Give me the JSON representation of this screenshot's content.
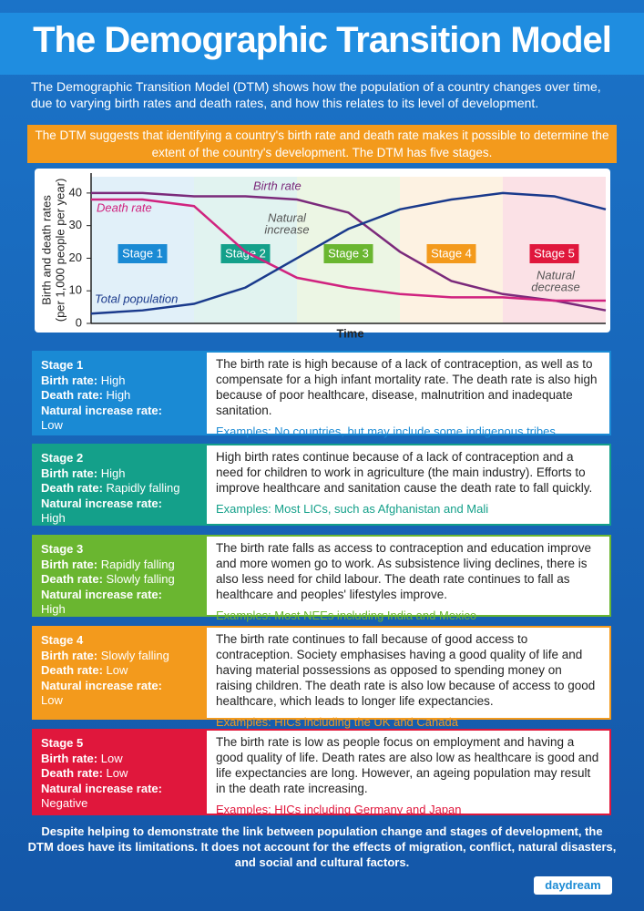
{
  "header": {
    "title": "The Demographic Transition Model",
    "intro": "The Demographic Transition Model (DTM) shows how the population of a country changes over time, due to varying birth rates and death rates, and how this relates to its level of development.",
    "banner": "The DTM suggests that identifying a country's birth rate and death rate makes it possible to determine the extent of the country's development. The DTM has five stages."
  },
  "chart_data": {
    "type": "line",
    "ylabel": [
      "Birth and death rates",
      "(per 1,000 people per year)"
    ],
    "xlabel": "Time",
    "categories": [
      null,
      null,
      null,
      null,
      null,
      null,
      null,
      null,
      null,
      null,
      null
    ],
    "series": [
      {
        "name": "Birth rate",
        "color": "#7b2a7b",
        "values": [
          40,
          40,
          39,
          39,
          38,
          34,
          22,
          13,
          9,
          7,
          4
        ]
      },
      {
        "name": "Death rate",
        "color": "#d0237f",
        "values": [
          38,
          38,
          36,
          22,
          14,
          11,
          9,
          8,
          8,
          7,
          7
        ]
      },
      {
        "name": "Total population",
        "color": "#1a3a8c",
        "values": [
          3,
          4,
          6,
          11,
          20,
          29,
          35,
          38,
          40,
          39,
          35
        ]
      }
    ],
    "annotations": [
      [
        "Natural",
        "increase"
      ],
      [
        "Natural",
        "decrease"
      ]
    ],
    "ylim": [
      0,
      45
    ],
    "yticks": [
      0,
      10,
      20,
      30,
      40
    ]
  },
  "stages": [
    {
      "title": "Stage 1",
      "color": "#1a8ad4",
      "facts": [
        {
          "label": "Birth rate:",
          "value": "High"
        },
        {
          "label": "Death rate:",
          "value": "High"
        },
        {
          "label": "Natural increase rate:",
          "value": "Low"
        }
      ],
      "text": "The birth rate is high because of a lack of contraception, as well as to compensate for a high infant mortality rate. The death rate is also high because of poor healthcare, disease, malnutrition and inadequate sanitation.",
      "example": "Examples: No countries, but may include some indigenous tribes"
    },
    {
      "title": "Stage 2",
      "color": "#14a08a",
      "facts": [
        {
          "label": "Birth rate:",
          "value": "High"
        },
        {
          "label": "Death rate:",
          "value": "Rapidly falling"
        },
        {
          "label": "Natural increase rate:",
          "value": "High"
        }
      ],
      "text": "High birth rates continue because of a lack of contraception and a need for children to work in agriculture (the main industry). Efforts to improve healthcare and sanitation cause the death rate to fall quickly.",
      "example": "Examples: Most LICs, such as Afghanistan and Mali"
    },
    {
      "title": "Stage 3",
      "color": "#6ab630",
      "facts": [
        {
          "label": "Birth rate:",
          "value": "Rapidly falling"
        },
        {
          "label": "Death rate:",
          "value": "Slowly falling"
        },
        {
          "label": "Natural increase rate:",
          "value": "High"
        }
      ],
      "text": "The birth rate falls as access to contraception and education improve and more women go to work. As subsistence living declines, there is also less need for child labour. The death rate continues to fall as healthcare and peoples' lifestyles improve.",
      "example": "Examples: Most NEEs including India and Mexico"
    },
    {
      "title": "Stage 4",
      "color": "#f39a1c",
      "facts": [
        {
          "label": "Birth rate:",
          "value": "Slowly falling"
        },
        {
          "label": "Death rate:",
          "value": "Low"
        },
        {
          "label": "Natural increase rate:",
          "value": "Low"
        }
      ],
      "text": "The birth rate continues to fall because of good access to contraception. Society emphasises having a good quality of life and having material possessions as opposed to spending money on raising children. The death rate is also low because of access to good healthcare, which leads to longer life expectancies.",
      "example": "Examples: HICs including the UK and Canada"
    },
    {
      "title": "Stage 5",
      "color": "#e0173c",
      "facts": [
        {
          "label": "Birth rate:",
          "value": "Low"
        },
        {
          "label": "Death rate:",
          "value": "Low"
        },
        {
          "label": "Natural increase rate:",
          "value": "Negative"
        }
      ],
      "text": "The birth rate is low as people focus on employment and having a good quality of life. Death rates are also low as healthcare is good and life expectancies are long. However, an ageing population may result in the death rate increasing.",
      "example": "Examples: HICs including Germany and Japan"
    }
  ],
  "footer": "Despite helping to demonstrate the link between population change and stages of development, the DTM does have its limitations. It does not account for the effects of migration, conflict, natural disasters, and social and cultural factors.",
  "logo": "daydream"
}
